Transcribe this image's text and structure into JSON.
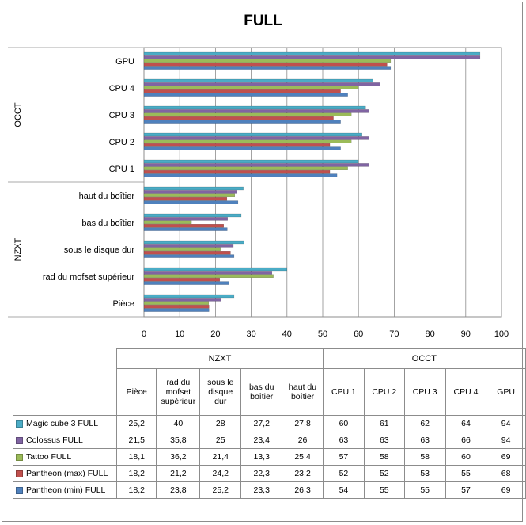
{
  "chart_data": {
    "type": "bar",
    "orientation": "horizontal",
    "title": "FULL",
    "categories": [
      "Pièce",
      "rad du mofset supérieur",
      "sous le disque dur",
      "bas du boîtier",
      "haut du boîtier",
      "CPU 1",
      "CPU 2",
      "CPU 3",
      "CPU 4",
      "GPU"
    ],
    "groups": [
      {
        "name": "NZXT",
        "categories": [
          "Pièce",
          "rad du mofset supérieur",
          "sous le disque dur",
          "bas du boîtier",
          "haut du boîtier"
        ]
      },
      {
        "name": "OCCT",
        "categories": [
          "CPU 1",
          "CPU 2",
          "CPU 3",
          "CPU 4",
          "GPU"
        ]
      }
    ],
    "table_headers": [
      "Pièce",
      "rad du mofset supérieur",
      "sous le disque dur",
      "bas du boîtier",
      "haut du boîtier",
      "CPU 1",
      "CPU 2",
      "CPU 3",
      "CPU 4",
      "GPU"
    ],
    "series": [
      {
        "name": "Magic cube 3 FULL",
        "color": "#4bacc6",
        "values": [
          25.2,
          40,
          28,
          27.2,
          27.8,
          60,
          61,
          62,
          64,
          94
        ],
        "labels": [
          "25,2",
          "40",
          "28",
          "27,2",
          "27,8",
          "60",
          "61",
          "62",
          "64",
          "94"
        ]
      },
      {
        "name": "Colossus FULL",
        "color": "#8064a2",
        "values": [
          21.5,
          35.8,
          25,
          23.4,
          26,
          63,
          63,
          63,
          66,
          94
        ],
        "labels": [
          "21,5",
          "35,8",
          "25",
          "23,4",
          "26",
          "63",
          "63",
          "63",
          "66",
          "94"
        ]
      },
      {
        "name": "Tattoo FULL",
        "color": "#9bbb59",
        "values": [
          18.1,
          36.2,
          21.4,
          13.3,
          25.4,
          57,
          58,
          58,
          60,
          69
        ],
        "labels": [
          "18,1",
          "36,2",
          "21,4",
          "13,3",
          "25,4",
          "57",
          "58",
          "58",
          "60",
          "69"
        ]
      },
      {
        "name": "Pantheon (max) FULL",
        "color": "#c0504d",
        "values": [
          18.2,
          21.2,
          24.2,
          22.3,
          23.2,
          52,
          52,
          53,
          55,
          68
        ],
        "labels": [
          "18,2",
          "21,2",
          "24,2",
          "22,3",
          "23,2",
          "52",
          "52",
          "53",
          "55",
          "68"
        ]
      },
      {
        "name": "Pantheon (min) FULL",
        "color": "#4f81bd",
        "values": [
          18.2,
          23.8,
          25.2,
          23.3,
          26.3,
          54,
          55,
          55,
          57,
          69
        ],
        "labels": [
          "18,2",
          "23,8",
          "25,2",
          "23,3",
          "26,3",
          "54",
          "55",
          "55",
          "57",
          "69"
        ]
      }
    ],
    "xlim": [
      0,
      100
    ],
    "xticks": [
      "0",
      "10",
      "20",
      "30",
      "40",
      "50",
      "60",
      "70",
      "80",
      "90",
      "100"
    ],
    "grid": true,
    "legend": "data-table"
  }
}
